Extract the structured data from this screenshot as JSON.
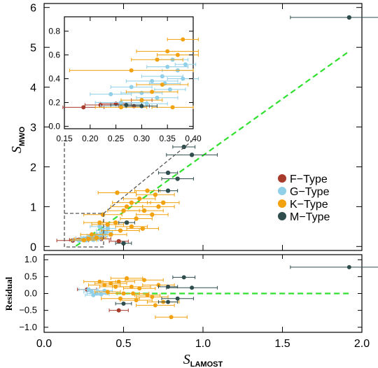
{
  "chart_data": [
    {
      "type": "scatter",
      "panel": "main",
      "xlabel": "S",
      "xlabel_sub": "LAMOST",
      "ylabel": "S",
      "ylabel_sub": "MWO",
      "xlim": [
        0.0,
        2.0
      ],
      "ylim": [
        -0.1,
        6.1
      ],
      "xticks": [
        "0.0",
        "0.5",
        "1.0",
        "1.5",
        "2.0"
      ],
      "yticks": [
        "0",
        "1",
        "2",
        "3",
        "4",
        "5",
        "6"
      ],
      "fit_line": {
        "color": "#2fe02f",
        "style": "dashed",
        "x": [
          0.2,
          1.92
        ],
        "y": [
          0.01,
          4.9
        ]
      },
      "legend": {
        "position": "right",
        "entries": [
          {
            "name": "F−Type",
            "color": "#a83a2c"
          },
          {
            "name": "G−Type",
            "color": "#8fcfe8"
          },
          {
            "name": "K−Type",
            "color": "#f2a10f"
          },
          {
            "name": "M−Type",
            "color": "#2f4d4d"
          }
        ]
      },
      "series": [
        {
          "name": "F−Type",
          "points": [
            {
              "x": 0.18,
              "y": 0.15,
              "xerr": 0.1
            },
            {
              "x": 0.22,
              "y": 0.17,
              "xerr": 0.06
            },
            {
              "x": 0.27,
              "y": 0.2,
              "xerr": 0.07
            },
            {
              "x": 0.3,
              "y": 0.21,
              "xerr": 0.05
            },
            {
              "x": 0.36,
              "y": 0.19,
              "xerr": 0.06
            },
            {
              "x": 0.47,
              "y": 0.13,
              "xerr": 0.06
            }
          ]
        },
        {
          "name": "G−Type",
          "points": [
            {
              "x": 0.22,
              "y": 0.15,
              "xerr": 0.05
            },
            {
              "x": 0.24,
              "y": 0.17,
              "xerr": 0.06
            },
            {
              "x": 0.26,
              "y": 0.16,
              "xerr": 0.08
            },
            {
              "x": 0.28,
              "y": 0.18,
              "xerr": 0.06
            },
            {
              "x": 0.3,
              "y": 0.2,
              "xerr": 0.05
            },
            {
              "x": 0.32,
              "y": 0.22,
              "xerr": 0.07
            },
            {
              "x": 0.34,
              "y": 0.25,
              "xerr": 0.06
            },
            {
              "x": 0.36,
              "y": 0.3,
              "xerr": 0.05
            },
            {
              "x": 0.38,
              "y": 0.34,
              "xerr": 0.05
            },
            {
              "x": 0.37,
              "y": 0.4,
              "xerr": 0.04
            },
            {
              "x": 0.35,
              "y": 0.5,
              "xerr": 0.06
            },
            {
              "x": 0.33,
              "y": 0.28,
              "xerr": 0.06
            },
            {
              "x": 0.29,
              "y": 0.24,
              "xerr": 0.06
            },
            {
              "x": 0.27,
              "y": 0.17,
              "xerr": 0.07
            },
            {
              "x": 0.31,
              "y": 0.17,
              "xerr": 0.05
            },
            {
              "x": 0.25,
              "y": 0.19,
              "xerr": 0.05
            },
            {
              "x": 0.39,
              "y": 0.36,
              "xerr": 0.04
            },
            {
              "x": 0.4,
              "y": 0.45,
              "xerr": 0.05
            }
          ]
        },
        {
          "name": "K−Type",
          "points": [
            {
              "x": 0.25,
              "y": 0.16,
              "xerr": 0.08
            },
            {
              "x": 0.28,
              "y": 0.19,
              "xerr": 0.09
            },
            {
              "x": 0.3,
              "y": 0.3,
              "xerr": 0.07
            },
            {
              "x": 0.33,
              "y": 0.22,
              "xerr": 0.06
            },
            {
              "x": 0.35,
              "y": 0.6,
              "xerr": 0.1
            },
            {
              "x": 0.37,
              "y": 0.8,
              "xerr": 0.12
            },
            {
              "x": 0.4,
              "y": 0.55,
              "xerr": 0.1
            },
            {
              "x": 0.45,
              "y": 0.6,
              "xerr": 0.08
            },
            {
              "x": 0.48,
              "y": 0.4,
              "xerr": 0.12
            },
            {
              "x": 0.5,
              "y": 0.9,
              "xerr": 0.1
            },
            {
              "x": 0.52,
              "y": 1.0,
              "xerr": 0.1
            },
            {
              "x": 0.55,
              "y": 1.1,
              "xerr": 0.12
            },
            {
              "x": 0.58,
              "y": 0.7,
              "xerr": 0.1
            },
            {
              "x": 0.6,
              "y": 1.2,
              "xerr": 0.1
            },
            {
              "x": 0.63,
              "y": 0.9,
              "xerr": 0.12
            },
            {
              "x": 0.65,
              "y": 1.4,
              "xerr": 0.08
            },
            {
              "x": 0.68,
              "y": 0.8,
              "xerr": 0.1
            },
            {
              "x": 0.7,
              "y": 1.3,
              "xerr": 0.12
            },
            {
              "x": 0.72,
              "y": 1.0,
              "xerr": 0.1
            },
            {
              "x": 0.75,
              "y": 1.1,
              "xerr": 0.1
            },
            {
              "x": 0.42,
              "y": 0.3,
              "xerr": 0.1
            },
            {
              "x": 0.46,
              "y": 1.35,
              "xerr": 0.12
            },
            {
              "x": 0.62,
              "y": 0.45,
              "xerr": 0.1
            },
            {
              "x": 0.55,
              "y": 0.5,
              "xerr": 0.1
            }
          ]
        },
        {
          "name": "M−Type",
          "points": [
            {
              "x": 0.5,
              "y": 0.08,
              "xerr": 0.05
            },
            {
              "x": 0.52,
              "y": 0.6,
              "xerr": 0.05
            },
            {
              "x": 0.78,
              "y": 1.4,
              "xerr": 0.06
            },
            {
              "x": 0.78,
              "y": 1.85,
              "xerr": 0.06
            },
            {
              "x": 0.84,
              "y": 1.7,
              "xerr": 0.1
            },
            {
              "x": 0.88,
              "y": 2.5,
              "xerr": 0.07
            },
            {
              "x": 0.93,
              "y": 2.3,
              "xerr": 0.16
            },
            {
              "x": 1.92,
              "y": 5.75,
              "xerr": 0.37
            }
          ]
        }
      ]
    },
    {
      "type": "scatter",
      "panel": "residual",
      "ylabel": "Residual",
      "xlim": [
        0.0,
        2.0
      ],
      "ylim": [
        -1.15,
        1.15
      ],
      "yticks": [
        "1.0",
        "0.5",
        "0.0",
        "−0.5",
        "−1.0"
      ],
      "zero_line": {
        "color": "#2fe02f",
        "style": "dashed",
        "y": 0.0
      },
      "series": [
        {
          "name": "F−Type",
          "points": [
            {
              "x": 0.27,
              "y": 0.12,
              "xerr": 0.06
            },
            {
              "x": 0.47,
              "y": -0.5,
              "xerr": 0.06
            }
          ]
        },
        {
          "name": "G−Type",
          "points": [
            {
              "x": 0.28,
              "y": 0.12,
              "xerr": 0.06
            },
            {
              "x": 0.3,
              "y": 0.05,
              "xerr": 0.05
            },
            {
              "x": 0.33,
              "y": 0.0,
              "xerr": 0.06
            },
            {
              "x": 0.36,
              "y": -0.02,
              "xerr": 0.05
            },
            {
              "x": 0.38,
              "y": 0.08,
              "xerr": 0.05
            },
            {
              "x": 0.31,
              "y": -0.05,
              "xerr": 0.05
            }
          ]
        },
        {
          "name": "K−Type",
          "points": [
            {
              "x": 0.35,
              "y": 0.35,
              "xerr": 0.1
            },
            {
              "x": 0.38,
              "y": 0.25,
              "xerr": 0.1
            },
            {
              "x": 0.4,
              "y": 0.05,
              "xerr": 0.08
            },
            {
              "x": 0.42,
              "y": 0.3,
              "xerr": 0.1
            },
            {
              "x": 0.45,
              "y": 0.2,
              "xerr": 0.1
            },
            {
              "x": 0.48,
              "y": -0.15,
              "xerr": 0.12
            },
            {
              "x": 0.5,
              "y": 0.0,
              "xerr": 0.1
            },
            {
              "x": 0.52,
              "y": 0.45,
              "xerr": 0.1
            },
            {
              "x": 0.55,
              "y": 0.2,
              "xerr": 0.12
            },
            {
              "x": 0.58,
              "y": -0.2,
              "xerr": 0.1
            },
            {
              "x": 0.6,
              "y": 0.15,
              "xerr": 0.1
            },
            {
              "x": 0.63,
              "y": 0.4,
              "xerr": 0.12
            },
            {
              "x": 0.65,
              "y": -0.05,
              "xerr": 0.08
            },
            {
              "x": 0.68,
              "y": -0.1,
              "xerr": 0.1
            },
            {
              "x": 0.7,
              "y": -0.35,
              "xerr": 0.12
            },
            {
              "x": 0.72,
              "y": 0.25,
              "xerr": 0.1
            },
            {
              "x": 0.75,
              "y": -0.25,
              "xerr": 0.1
            },
            {
              "x": 0.8,
              "y": -0.7,
              "xerr": 0.1
            },
            {
              "x": 0.47,
              "y": 0.35,
              "xerr": 0.1
            },
            {
              "x": 0.56,
              "y": 0.0,
              "xerr": 0.1
            }
          ]
        },
        {
          "name": "M−Type",
          "points": [
            {
              "x": 0.5,
              "y": -0.3,
              "xerr": 0.05
            },
            {
              "x": 0.78,
              "y": 0.2,
              "xerr": 0.06
            },
            {
              "x": 0.78,
              "y": -0.25,
              "xerr": 0.06
            },
            {
              "x": 0.84,
              "y": -0.15,
              "xerr": 0.1
            },
            {
              "x": 0.88,
              "y": 0.48,
              "xerr": 0.07
            },
            {
              "x": 0.93,
              "y": 0.17,
              "xerr": 0.16
            },
            {
              "x": 1.92,
              "y": 0.78,
              "xerr": 0.37
            }
          ]
        }
      ]
    },
    {
      "type": "scatter",
      "panel": "inset",
      "xlim": [
        0.15,
        0.4
      ],
      "ylim": [
        -0.02,
        0.92
      ],
      "xticks": [
        "0.15",
        "0.20",
        "0.25",
        "0.30",
        "0.35",
        "0.40"
      ],
      "yticks": [
        "0.0",
        "0.2",
        "0.4",
        "0.6",
        "0.8"
      ],
      "series": [
        {
          "name": "F−Type",
          "points": [
            {
              "x": 0.187,
              "y": 0.16,
              "xerr": 0.04
            },
            {
              "x": 0.22,
              "y": 0.18,
              "xerr": 0.03
            },
            {
              "x": 0.25,
              "y": 0.19,
              "xerr": 0.03
            },
            {
              "x": 0.285,
              "y": 0.17,
              "xerr": 0.03
            },
            {
              "x": 0.3,
              "y": 0.22,
              "xerr": 0.02
            }
          ]
        },
        {
          "name": "G−Type",
          "points": [
            {
              "x": 0.24,
              "y": 0.27,
              "xerr": 0.04
            },
            {
              "x": 0.26,
              "y": 0.2,
              "xerr": 0.05
            },
            {
              "x": 0.28,
              "y": 0.33,
              "xerr": 0.04
            },
            {
              "x": 0.3,
              "y": 0.28,
              "xerr": 0.04
            },
            {
              "x": 0.32,
              "y": 0.38,
              "xerr": 0.05
            },
            {
              "x": 0.34,
              "y": 0.42,
              "xerr": 0.04
            },
            {
              "x": 0.35,
              "y": 0.5,
              "xerr": 0.04
            },
            {
              "x": 0.36,
              "y": 0.56,
              "xerr": 0.03
            },
            {
              "x": 0.37,
              "y": 0.47,
              "xerr": 0.03
            },
            {
              "x": 0.38,
              "y": 0.4,
              "xerr": 0.03
            },
            {
              "x": 0.355,
              "y": 0.31,
              "xerr": 0.03
            },
            {
              "x": 0.33,
              "y": 0.24,
              "xerr": 0.04
            },
            {
              "x": 0.27,
              "y": 0.17,
              "xerr": 0.05
            },
            {
              "x": 0.31,
              "y": 0.19,
              "xerr": 0.04
            },
            {
              "x": 0.385,
              "y": 0.52,
              "xerr": 0.02
            },
            {
              "x": 0.345,
              "y": 0.36,
              "xerr": 0.03
            }
          ]
        },
        {
          "name": "K−Type",
          "points": [
            {
              "x": 0.28,
              "y": 0.47,
              "xerr": 0.12
            },
            {
              "x": 0.3,
              "y": 0.22,
              "xerr": 0.04
            },
            {
              "x": 0.32,
              "y": 0.29,
              "xerr": 0.05
            },
            {
              "x": 0.34,
              "y": 0.35,
              "xerr": 0.05
            },
            {
              "x": 0.35,
              "y": 0.63,
              "xerr": 0.06
            },
            {
              "x": 0.37,
              "y": 0.6,
              "xerr": 0.04
            },
            {
              "x": 0.38,
              "y": 0.73,
              "xerr": 0.03
            },
            {
              "x": 0.36,
              "y": 0.16,
              "xerr": 0.04
            },
            {
              "x": 0.26,
              "y": 0.16,
              "xerr": 0.05
            },
            {
              "x": 0.33,
              "y": 0.56,
              "xerr": 0.05
            }
          ]
        },
        {
          "name": "M−Type",
          "points": [
            {
              "x": 0.27,
              "y": 0.18,
              "xerr": 0.03
            },
            {
              "x": 0.3,
              "y": 0.17,
              "xerr": 0.03
            }
          ]
        }
      ]
    }
  ]
}
